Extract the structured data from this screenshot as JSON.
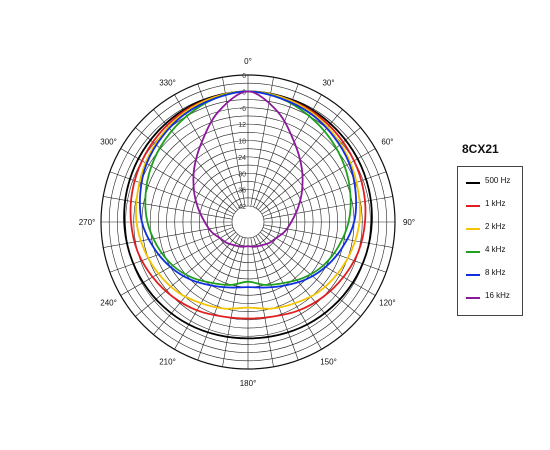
{
  "chart_data": {
    "type": "polar-line",
    "title": "8CX21",
    "angle_labels": [
      "0°",
      "30°",
      "60°",
      "90°",
      "120°",
      "150°",
      "180°",
      "210°",
      "240°",
      "270°",
      "300°",
      "330°"
    ],
    "radial_labels": [
      "6",
      "0",
      "-6",
      "12",
      "18",
      "24",
      "30",
      "36",
      "42"
    ],
    "radial_range_db": [
      -42,
      6
    ],
    "grid": true,
    "legend_position": "right",
    "angles_deg": [
      0,
      15,
      30,
      45,
      60,
      75,
      90,
      105,
      120,
      135,
      150,
      165,
      180,
      195,
      210,
      225,
      240,
      255,
      270,
      285,
      300,
      315,
      330,
      345
    ],
    "series": [
      {
        "name": "500 Hz",
        "color": "#000000",
        "values": [
          0,
          -0.2,
          -0.5,
          -1,
          -1.5,
          -2,
          -2.5,
          -3,
          -3.5,
          -4,
          -4.5,
          -5,
          -5.2,
          -5,
          -4.5,
          -4,
          -3.5,
          -3,
          -2.5,
          -2,
          -1.5,
          -1,
          -0.5,
          -0.2
        ]
      },
      {
        "name": "1 kHz",
        "color": "#e02020",
        "values": [
          0,
          -0.5,
          -1,
          -2,
          -3,
          -4,
          -5,
          -6,
          -7.5,
          -9,
          -10.5,
          -12,
          -12.5,
          -12,
          -10.5,
          -9,
          -7.5,
          -6,
          -5,
          -4,
          -3,
          -2,
          -1,
          -0.5
        ]
      },
      {
        "name": "2 kHz",
        "color": "#f5c400",
        "values": [
          0,
          -0.5,
          -1.5,
          -3,
          -4.5,
          -6,
          -7,
          -8.5,
          -10,
          -11.5,
          -13.5,
          -15,
          -16.5,
          -15,
          -13.5,
          -11.5,
          -10,
          -8.5,
          -7,
          -6,
          -4.5,
          -3,
          -1.5,
          -0.5
        ]
      },
      {
        "name": "4 kHz",
        "color": "#20a020",
        "values": [
          0,
          -1,
          -3,
          -5,
          -7,
          -9,
          -11,
          -13.5,
          -16,
          -19,
          -22,
          -24,
          -26,
          -24,
          -22,
          -19,
          -16,
          -13.5,
          -11,
          -9,
          -7,
          -5,
          -3,
          -1
        ]
      },
      {
        "name": "8 kHz",
        "color": "#1030e0",
        "values": [
          0,
          -1,
          -2,
          -3.5,
          -5,
          -7,
          -9,
          -12,
          -15,
          -18,
          -21,
          -23,
          -24,
          -23,
          -21,
          -18,
          -15,
          -12,
          -9,
          -7,
          -5,
          -3.5,
          -2,
          -1
        ]
      },
      {
        "name": "16 kHz",
        "color": "#8a1a9a",
        "values": [
          0,
          -6,
          -14,
          -20,
          -25,
          -29,
          -32,
          -34,
          -36,
          -37,
          -38,
          -38.5,
          -39,
          -38.5,
          -38,
          -37,
          -36,
          -34,
          -32,
          -29,
          -25,
          -20,
          -14,
          -6
        ]
      }
    ]
  }
}
